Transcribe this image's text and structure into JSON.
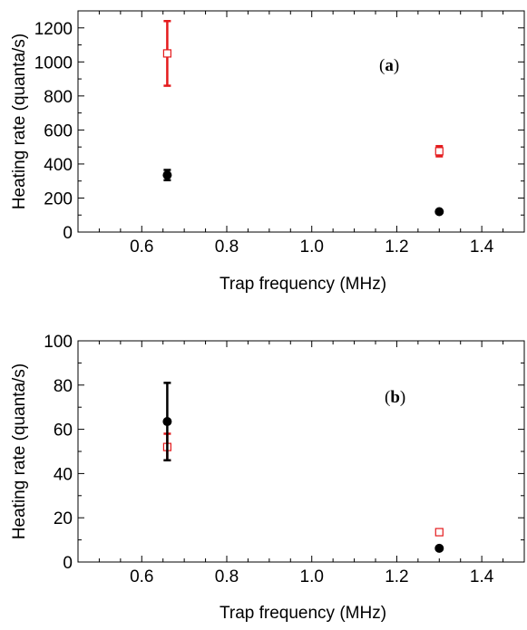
{
  "chart_data": [
    {
      "type": "scatter",
      "panel_label": "a",
      "xlabel": "Trap frequency (MHz)",
      "ylabel": "Heating rate (quanta/s)",
      "xlim": [
        0.45,
        1.5
      ],
      "ylim": [
        0,
        1300
      ],
      "x_ticks": [
        0.6,
        0.8,
        1.0,
        1.2,
        1.4
      ],
      "x_tick_labels": [
        "0.6",
        "0.8",
        "1.0",
        "1.2",
        "1.4"
      ],
      "y_ticks": [
        0,
        200,
        400,
        600,
        800,
        1000,
        1200
      ],
      "y_tick_labels": [
        "0",
        "200",
        "400",
        "600",
        "800",
        "1000",
        "1200"
      ],
      "series": [
        {
          "marker": "open-square",
          "color": "#e41a1c",
          "points": [
            {
              "x": 0.66,
              "y": 1050,
              "err": 190
            },
            {
              "x": 1.3,
              "y": 475,
              "err": 30
            }
          ]
        },
        {
          "marker": "filled-circle",
          "color": "#000000",
          "points": [
            {
              "x": 0.66,
              "y": 335,
              "err": 30
            },
            {
              "x": 1.3,
              "y": 120,
              "err": 5
            }
          ]
        }
      ]
    },
    {
      "type": "scatter",
      "panel_label": "b",
      "xlabel": "Trap frequency (MHz)",
      "ylabel": "Heating rate (quanta/s)",
      "xlim": [
        0.45,
        1.5
      ],
      "ylim": [
        0,
        100
      ],
      "x_ticks": [
        0.6,
        0.8,
        1.0,
        1.2,
        1.4
      ],
      "x_tick_labels": [
        "0.6",
        "0.8",
        "1.0",
        "1.2",
        "1.4"
      ],
      "y_ticks": [
        0,
        20,
        40,
        60,
        80,
        100
      ],
      "y_tick_labels": [
        "0",
        "20",
        "40",
        "60",
        "80",
        "100"
      ],
      "series": [
        {
          "marker": "open-square",
          "color": "#e41a1c",
          "points": [
            {
              "x": 0.66,
              "y": 52,
              "err": 6
            },
            {
              "x": 1.3,
              "y": 13.5,
              "err": 1
            }
          ]
        },
        {
          "marker": "filled-circle",
          "color": "#000000",
          "points": [
            {
              "x": 0.66,
              "y": 63.5,
              "err": 17.5
            },
            {
              "x": 1.3,
              "y": 6.2,
              "err": 0.5
            }
          ]
        }
      ]
    }
  ]
}
